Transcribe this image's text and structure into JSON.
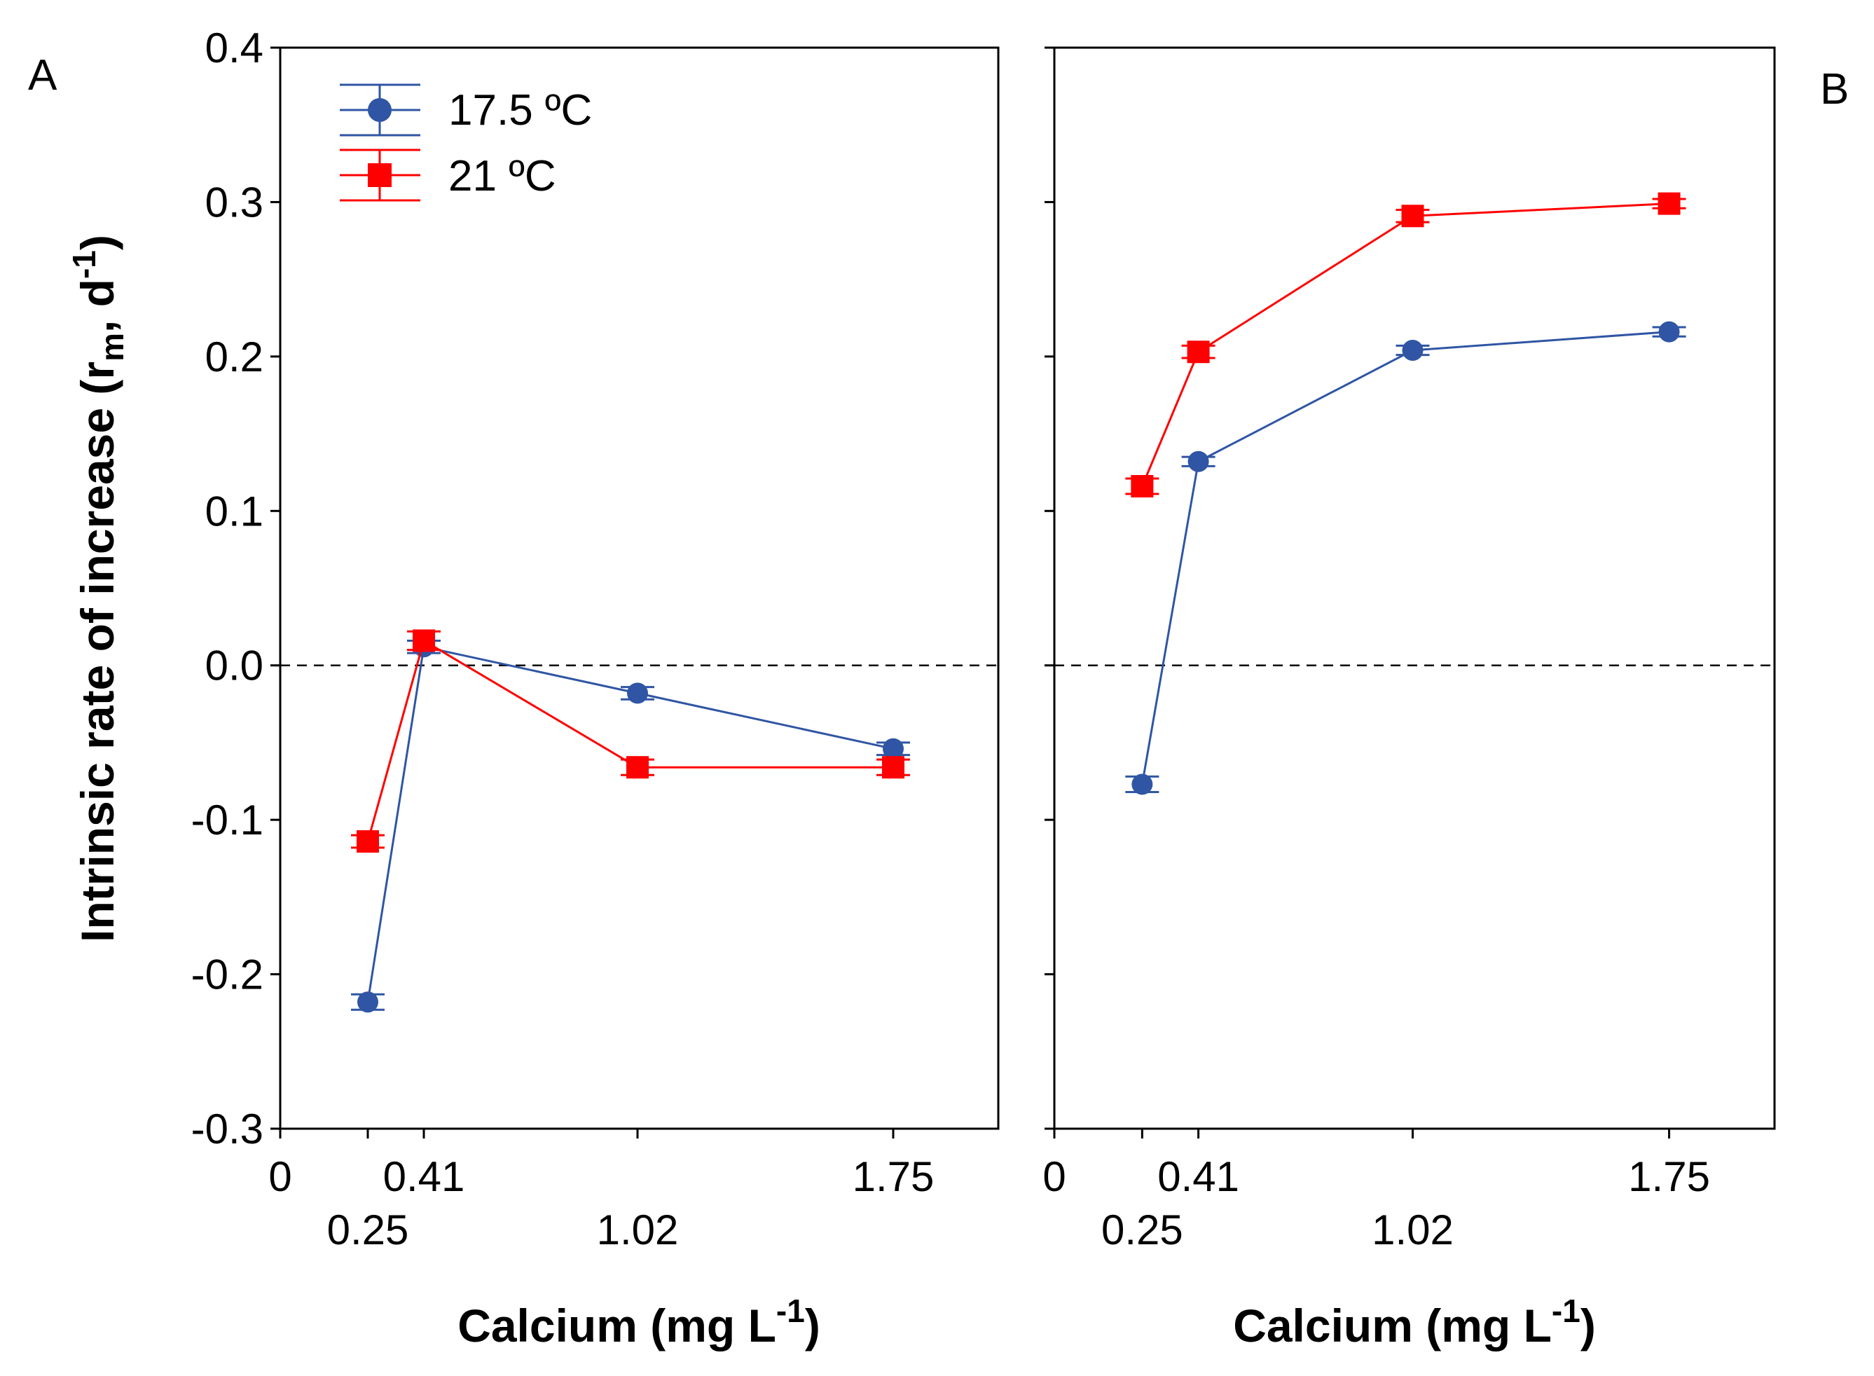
{
  "figure": {
    "ylabel": "Intrinsic rate of increase (r",
    "ylabel_sub": "m",
    "ylabel_mid": ", d",
    "ylabel_sup": "-1",
    "ylabel_end": ")",
    "xlabel": "Calcium (mg L",
    "xlabel_sup": "-1",
    "xlabel_end": ")"
  },
  "legend": {
    "position": "top-left",
    "entries": [
      {
        "label": "17.5 ºC",
        "color": "#2f55a4",
        "marker": "circle"
      },
      {
        "label": "21 ºC",
        "color": "#ff0000",
        "marker": "square"
      }
    ]
  },
  "chart_data": [
    {
      "panel": "A",
      "type": "line",
      "xlim": [
        0,
        2.05
      ],
      "ylim": [
        -0.3,
        0.4
      ],
      "yticks": [
        -0.3,
        -0.2,
        -0.1,
        0.0,
        0.1,
        0.2,
        0.3,
        0.4
      ],
      "ytick_labels": [
        "-0.3",
        "-0.2",
        "-0.1",
        "0.0",
        "0.1",
        "0.2",
        "0.3",
        "0.4"
      ],
      "xticks_upper": [
        {
          "value": 0,
          "label": "0"
        },
        {
          "value": 0.41,
          "label": "0.41"
        },
        {
          "value": 1.75,
          "label": "1.75"
        }
      ],
      "xticks_lower": [
        {
          "value": 0.25,
          "label": "0.25"
        },
        {
          "value": 1.02,
          "label": "1.02"
        }
      ],
      "reference_line": {
        "y": 0.0,
        "style": "dashed"
      },
      "series": [
        {
          "name": "17.5 ºC",
          "x": [
            0.25,
            0.41,
            1.02,
            1.75
          ],
          "y": [
            -0.218,
            0.012,
            -0.018,
            -0.054
          ],
          "err": [
            0.005,
            0.004,
            0.004,
            0.004
          ]
        },
        {
          "name": "21 ºC",
          "x": [
            0.25,
            0.41,
            1.02,
            1.75
          ],
          "y": [
            -0.114,
            0.016,
            -0.066,
            -0.066
          ],
          "err": [
            0.004,
            0.006,
            0.005,
            0.005
          ]
        }
      ]
    },
    {
      "panel": "B",
      "type": "line",
      "xlim": [
        0,
        2.05
      ],
      "ylim": [
        -0.3,
        0.4
      ],
      "yticks": [
        -0.3,
        -0.2,
        -0.1,
        0.0,
        0.1,
        0.2,
        0.3,
        0.4
      ],
      "ytick_labels": [],
      "xticks_upper": [
        {
          "value": 0,
          "label": "0"
        },
        {
          "value": 0.41,
          "label": "0.41"
        },
        {
          "value": 1.75,
          "label": "1.75"
        }
      ],
      "xticks_lower": [
        {
          "value": 0.25,
          "label": "0.25"
        },
        {
          "value": 1.02,
          "label": "1.02"
        }
      ],
      "reference_line": {
        "y": 0.0,
        "style": "dashed"
      },
      "series": [
        {
          "name": "17.5 ºC",
          "x": [
            0.25,
            0.41,
            1.02,
            1.75
          ],
          "y": [
            -0.077,
            0.132,
            0.204,
            0.216
          ],
          "err": [
            0.005,
            0.003,
            0.003,
            0.003
          ]
        },
        {
          "name": "21 ºC",
          "x": [
            0.25,
            0.41,
            1.02,
            1.75
          ],
          "y": [
            0.116,
            0.203,
            0.291,
            0.299
          ],
          "err": [
            0.005,
            0.004,
            0.004,
            0.003
          ]
        }
      ]
    }
  ]
}
